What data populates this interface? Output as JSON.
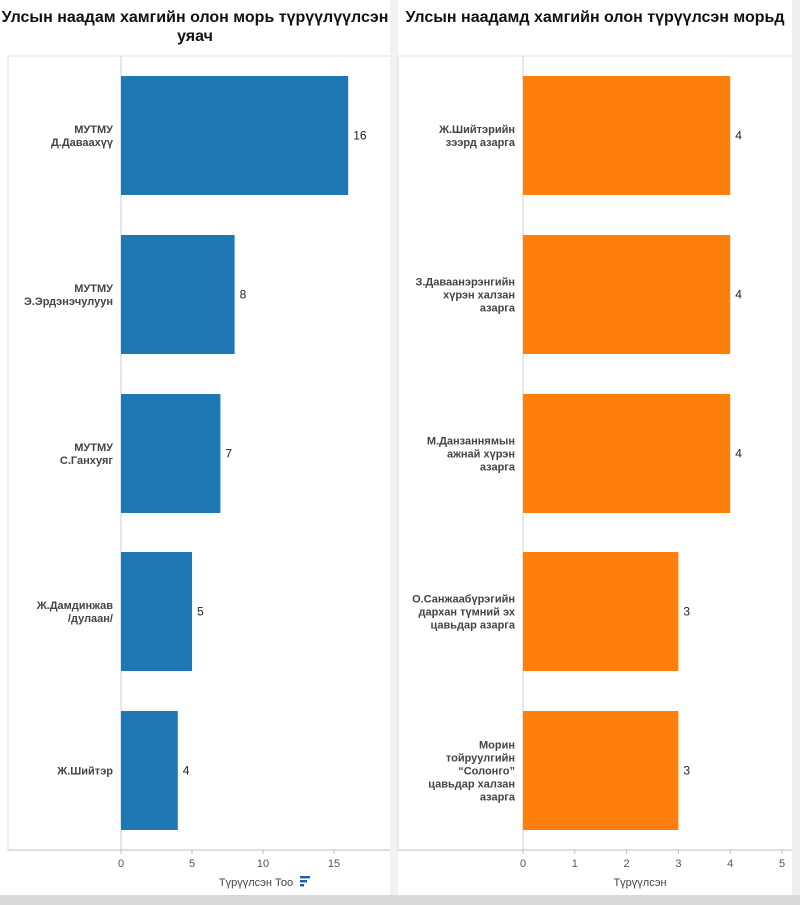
{
  "chart_data": [
    {
      "type": "bar",
      "orientation": "horizontal",
      "title": "Улсын наадам хамгийн олон морь түрүүлүүлсэн уяач",
      "categories": [
        [
          "МУТМУ",
          "Д.Даваахүү"
        ],
        [
          "МУТМУ",
          "Э.Эрдэнэчулуун"
        ],
        [
          "МУТМУ",
          "С.Ганхуяг"
        ],
        [
          "Ж.Дамдинжав",
          "/дулаан/"
        ],
        [
          "Ж.Шийтэр"
        ]
      ],
      "values": [
        16,
        8,
        7,
        5,
        4
      ],
      "xlabel": "Түрүүлсэн Тоо",
      "xticks": [
        0,
        5,
        10,
        15
      ],
      "xlim": [
        0,
        18.5
      ],
      "color": "#1f77b4",
      "grid": false
    },
    {
      "type": "bar",
      "orientation": "horizontal",
      "title": "Улсын наадамд хамгийн олон түрүүлсэн морьд",
      "categories": [
        [
          "Ж.Шийтэрийн",
          "зээрд азарга"
        ],
        [
          "З.Даваанэрэнгийн",
          "хүрэн халзан",
          "азарга"
        ],
        [
          "М.Данзаннямын",
          "ажнай хүрэн",
          "азарга"
        ],
        [
          "О.Санжаабүрэгийн",
          "дархан түмний эх",
          "цавьдар азарга"
        ],
        [
          "Морин",
          "тойруулгийн",
          "“Солонго”",
          "цавьдар халзан",
          "азарга"
        ]
      ],
      "values": [
        4,
        4,
        4,
        3,
        3
      ],
      "xlabel": "Түрүүлсэн",
      "xticks": [
        0,
        1,
        2,
        3,
        4,
        5
      ],
      "xlim": [
        0,
        5
      ],
      "color": "#ff7f0e",
      "grid": false
    }
  ]
}
